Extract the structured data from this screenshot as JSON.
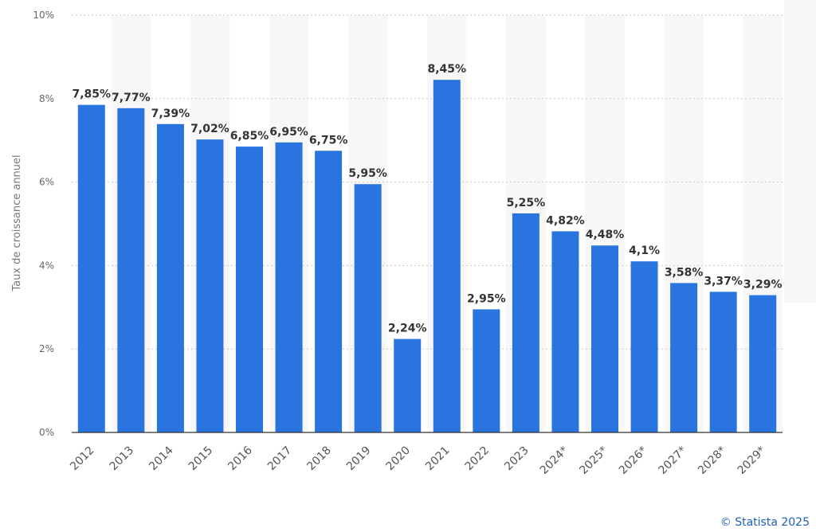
{
  "chart_data": {
    "type": "bar",
    "categories": [
      "2012",
      "2013",
      "2014",
      "2015",
      "2016",
      "2017",
      "2018",
      "2019",
      "2020",
      "2021",
      "2022",
      "2023",
      "2024*",
      "2025*",
      "2026*",
      "2027*",
      "2028*",
      "2029*"
    ],
    "values": [
      7.85,
      7.77,
      7.39,
      7.02,
      6.85,
      6.95,
      6.75,
      5.95,
      2.24,
      8.45,
      2.95,
      5.25,
      4.82,
      4.48,
      4.1,
      3.58,
      3.37,
      3.29
    ],
    "value_labels": [
      "7,85%",
      "7,77%",
      "7,39%",
      "7,02%",
      "6,85%",
      "6,95%",
      "6,75%",
      "5,95%",
      "2,24%",
      "8,45%",
      "2,95%",
      "5,25%",
      "4,82%",
      "4,48%",
      "4,1%",
      "3,58%",
      "3,37%",
      "3,29%"
    ],
    "ylabel": "Taux de croissance annuel",
    "xlabel": "",
    "ylim": [
      0,
      10
    ],
    "yticks": [
      0,
      2,
      4,
      6,
      8,
      10
    ],
    "ytick_labels": [
      "0%",
      "2%",
      "4%",
      "6%",
      "8%",
      "10%"
    ],
    "grid": true,
    "bar_color": "#2a74e0",
    "band_color": "#f7f7f7"
  },
  "footer": {
    "credit": "© Statista 2025"
  }
}
